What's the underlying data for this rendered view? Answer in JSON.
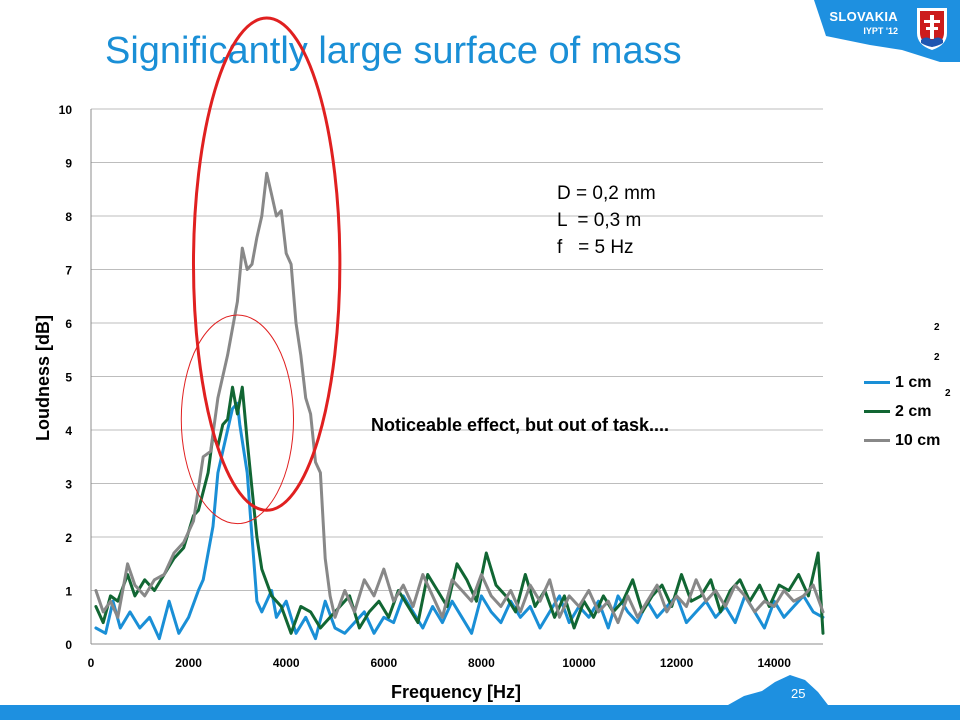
{
  "header": {
    "title": "Significantly large surface of mass",
    "brand_country": "SLOVAKIA",
    "brand_event": "IYPT '12"
  },
  "annotation": {
    "params": [
      "D = 0,2 mm",
      "L  = 0,3 m",
      "f   = 5 Hz"
    ],
    "note": "Noticeable effect, but out of task...."
  },
  "legend_superscripts": [
    "2",
    "2",
    "2"
  ],
  "slide": {
    "page_number": "25"
  },
  "colors": {
    "accent": "#1a8fd6",
    "footer": "#1e90e0",
    "circle": "#e02020"
  },
  "chart_data": {
    "type": "line",
    "xlabel": "Frequency [Hz]",
    "ylabel": "Loudness [dB]",
    "xlim": [
      0,
      15000
    ],
    "ylim": [
      0,
      10
    ],
    "xticks": [
      "0",
      "2000",
      "4000",
      "6000",
      "8000",
      "10000",
      "12000",
      "14000"
    ],
    "yticks": [
      "0",
      "1",
      "2",
      "3",
      "4",
      "5",
      "6",
      "7",
      "8",
      "9",
      "10"
    ],
    "grid": "horizontal",
    "legend_position": "right",
    "series": [
      {
        "name": "1 cm",
        "color": "#1a8fd6",
        "x": [
          100,
          300,
          450,
          600,
          800,
          1000,
          1200,
          1400,
          1600,
          1800,
          2000,
          2200,
          2300,
          2500,
          2600,
          2800,
          2900,
          3000,
          3050,
          3200,
          3300,
          3400,
          3500,
          3700,
          3800,
          4000,
          4200,
          4400,
          4600,
          4800,
          5000,
          5200,
          5400,
          5600,
          5800,
          6000,
          6200,
          6400,
          6600,
          6800,
          7000,
          7200,
          7400,
          7600,
          7800,
          8000,
          8200,
          8400,
          8600,
          8800,
          9000,
          9200,
          9400,
          9600,
          9800,
          10000,
          10200,
          10400,
          10600,
          10800,
          11000,
          11200,
          11400,
          11600,
          11800,
          12000,
          12200,
          12400,
          12600,
          12800,
          13000,
          13200,
          13400,
          13600,
          13800,
          14000,
          14200,
          14400,
          14600,
          14800,
          15000
        ],
        "y": [
          0.3,
          0.2,
          0.8,
          0.3,
          0.6,
          0.3,
          0.5,
          0.1,
          0.8,
          0.2,
          0.5,
          1.0,
          1.2,
          2.2,
          3.2,
          4.0,
          4.4,
          4.5,
          4.1,
          3.2,
          2.0,
          0.8,
          0.6,
          1.0,
          0.5,
          0.8,
          0.2,
          0.5,
          0.1,
          0.8,
          0.3,
          0.2,
          0.4,
          0.6,
          0.2,
          0.5,
          0.4,
          0.9,
          0.6,
          0.3,
          0.7,
          0.4,
          0.8,
          0.5,
          0.2,
          0.9,
          0.6,
          0.4,
          0.8,
          0.5,
          0.7,
          0.3,
          0.6,
          0.9,
          0.4,
          0.7,
          0.5,
          0.8,
          0.3,
          0.9,
          0.6,
          0.4,
          0.8,
          0.5,
          0.7,
          0.9,
          0.4,
          0.6,
          0.8,
          0.5,
          0.7,
          0.4,
          0.9,
          0.6,
          0.3,
          0.8,
          0.5,
          0.7,
          0.9,
          0.6,
          0.5
        ]
      },
      {
        "name": "2 cm",
        "color": "#116633",
        "x": [
          100,
          250,
          400,
          550,
          750,
          900,
          1100,
          1300,
          1500,
          1700,
          1900,
          2100,
          2200,
          2400,
          2500,
          2600,
          2700,
          2800,
          2900,
          3000,
          3100,
          3200,
          3300,
          3400,
          3500,
          3700,
          3900,
          4100,
          4300,
          4500,
          4700,
          4900,
          5100,
          5300,
          5500,
          5700,
          5900,
          6100,
          6300,
          6500,
          6700,
          6900,
          7100,
          7300,
          7500,
          7700,
          7900,
          8100,
          8300,
          8500,
          8700,
          8900,
          9100,
          9300,
          9500,
          9700,
          9900,
          10100,
          10300,
          10500,
          10700,
          10900,
          11100,
          11300,
          11500,
          11700,
          11900,
          12100,
          12300,
          12500,
          12700,
          12900,
          13100,
          13300,
          13500,
          13700,
          13900,
          14100,
          14300,
          14500,
          14700,
          14900,
          15000
        ],
        "y": [
          0.7,
          0.4,
          0.9,
          0.8,
          1.3,
          0.9,
          1.2,
          1.0,
          1.3,
          1.6,
          1.8,
          2.4,
          2.5,
          3.2,
          3.9,
          3.7,
          4.1,
          4.2,
          4.8,
          4.3,
          4.8,
          3.8,
          2.9,
          2.0,
          1.4,
          0.9,
          0.7,
          0.2,
          0.7,
          0.6,
          0.3,
          0.5,
          0.7,
          0.9,
          0.3,
          0.6,
          0.8,
          0.5,
          1.0,
          0.7,
          0.4,
          1.3,
          1.0,
          0.7,
          1.5,
          1.2,
          0.8,
          1.7,
          1.1,
          0.9,
          0.6,
          1.3,
          0.7,
          1.0,
          0.5,
          0.9,
          0.3,
          0.8,
          0.5,
          0.9,
          0.6,
          0.8,
          1.2,
          0.6,
          0.9,
          1.1,
          0.7,
          1.3,
          0.8,
          0.9,
          1.2,
          0.6,
          1.0,
          1.2,
          0.8,
          1.1,
          0.7,
          1.1,
          1.0,
          1.3,
          0.9,
          1.7,
          0.2
        ]
      },
      {
        "name": "10 cm",
        "color": "#888888",
        "x": [
          100,
          250,
          400,
          550,
          750,
          900,
          1100,
          1300,
          1500,
          1700,
          1900,
          2100,
          2300,
          2450,
          2600,
          2800,
          2900,
          3000,
          3100,
          3200,
          3300,
          3400,
          3500,
          3600,
          3700,
          3800,
          3900,
          4000,
          4100,
          4200,
          4300,
          4400,
          4500,
          4600,
          4700,
          4800,
          4900,
          5000,
          5200,
          5400,
          5600,
          5800,
          6000,
          6200,
          6400,
          6600,
          6800,
          7000,
          7200,
          7400,
          7600,
          7800,
          8000,
          8200,
          8400,
          8600,
          8800,
          9000,
          9200,
          9400,
          9600,
          9800,
          10000,
          10200,
          10400,
          10600,
          10800,
          11000,
          11200,
          11400,
          11600,
          11800,
          12000,
          12200,
          12400,
          12600,
          12800,
          13000,
          13200,
          13400,
          13600,
          13800,
          14000,
          14200,
          14400,
          14600,
          14800,
          15000
        ],
        "y": [
          1.0,
          0.6,
          0.8,
          0.5,
          1.5,
          1.1,
          0.9,
          1.2,
          1.3,
          1.7,
          1.9,
          2.3,
          3.5,
          3.6,
          4.6,
          5.4,
          5.9,
          6.4,
          7.4,
          7.0,
          7.1,
          7.6,
          8.0,
          8.8,
          8.4,
          8.0,
          8.1,
          7.3,
          7.1,
          6.0,
          5.4,
          4.6,
          4.3,
          3.4,
          3.2,
          1.6,
          0.9,
          0.5,
          1.0,
          0.6,
          1.2,
          0.9,
          1.4,
          0.8,
          1.1,
          0.7,
          1.3,
          0.9,
          0.5,
          1.2,
          1.0,
          0.8,
          1.3,
          0.9,
          0.7,
          1.0,
          0.6,
          1.1,
          0.8,
          1.2,
          0.5,
          0.9,
          0.7,
          1.0,
          0.6,
          0.8,
          0.4,
          0.9,
          0.5,
          0.8,
          1.1,
          0.6,
          0.9,
          0.7,
          1.2,
          0.8,
          1.0,
          0.7,
          1.1,
          0.9,
          0.6,
          0.8,
          0.7,
          1.0,
          0.8,
          0.9,
          1.1,
          0.6
        ]
      }
    ],
    "annotations": [
      {
        "type": "ellipse",
        "color": "#e02020",
        "center": [
          3600,
          7.1
        ],
        "radius_x": 1500,
        "radius_y": 4.6,
        "stroke": "thick"
      },
      {
        "type": "ellipse",
        "color": "#e02020",
        "center": [
          3000,
          4.2
        ],
        "radius_x": 1150,
        "radius_y": 1.95,
        "stroke": "thin"
      }
    ]
  }
}
